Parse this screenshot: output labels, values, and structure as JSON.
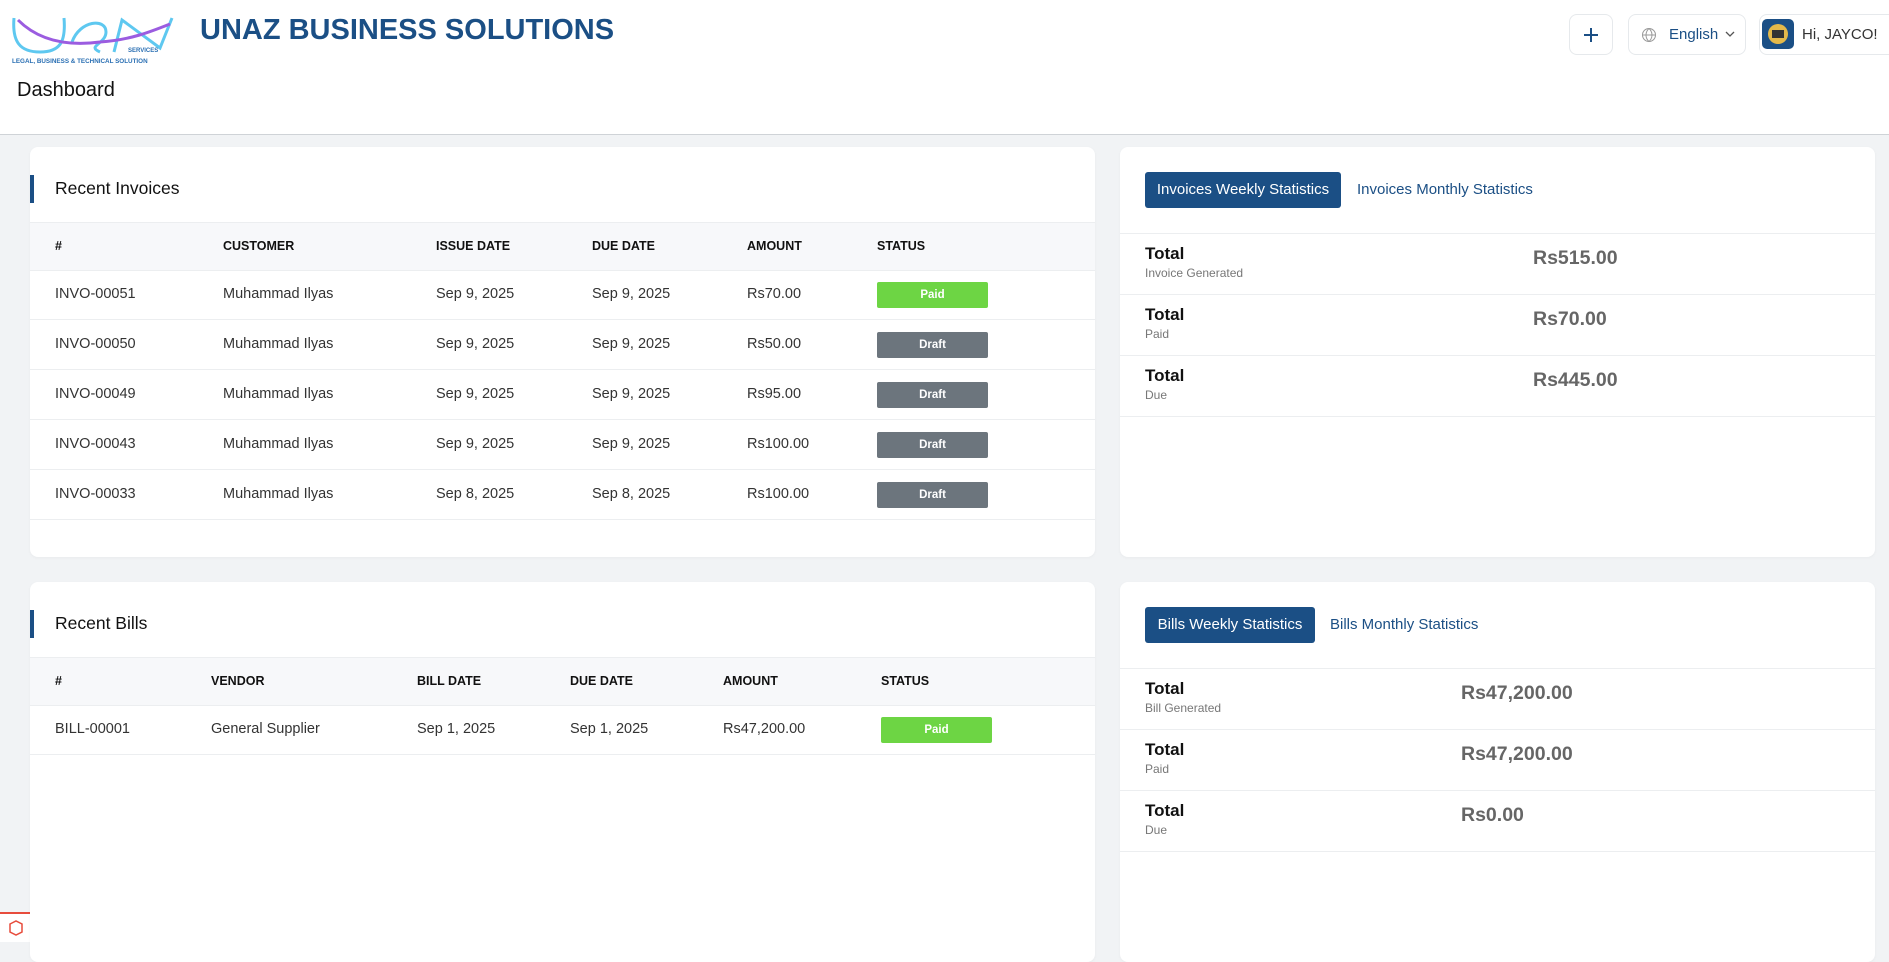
{
  "header": {
    "logo_word": "USN",
    "logo_sub": "SERVICES",
    "logo_tagline": "LEGAL, BUSINESS & TECHNICAL SOLUTION",
    "title": "UNAZ BUSINESS SOLUTIONS",
    "language": "English",
    "greeting": "Hi, JAYCO!"
  },
  "page_title": "Dashboard",
  "status_colors": {
    "Paid": "#6dd544",
    "Draft": "#6c757d"
  },
  "invoices": {
    "title": "Recent Invoices",
    "columns": [
      "#",
      "CUSTOMER",
      "ISSUE DATE",
      "DUE DATE",
      "AMOUNT",
      "STATUS"
    ],
    "rows": [
      [
        "INVO-00051",
        "Muhammad Ilyas",
        "Sep 9, 2025",
        "Sep 9, 2025",
        "Rs70.00",
        "Paid"
      ],
      [
        "INVO-00050",
        "Muhammad Ilyas",
        "Sep 9, 2025",
        "Sep 9, 2025",
        "Rs50.00",
        "Draft"
      ],
      [
        "INVO-00049",
        "Muhammad Ilyas",
        "Sep 9, 2025",
        "Sep 9, 2025",
        "Rs95.00",
        "Draft"
      ],
      [
        "INVO-00043",
        "Muhammad Ilyas",
        "Sep 9, 2025",
        "Sep 9, 2025",
        "Rs100.00",
        "Draft"
      ],
      [
        "INVO-00033",
        "Muhammad Ilyas",
        "Sep 8, 2025",
        "Sep 8, 2025",
        "Rs100.00",
        "Draft"
      ]
    ]
  },
  "invoice_stats": {
    "tabs": [
      "Invoices Weekly Statistics",
      "Invoices Monthly Statistics"
    ],
    "rows": [
      {
        "label": "Total",
        "sub": "Invoice Generated",
        "value": "Rs515.00"
      },
      {
        "label": "Total",
        "sub": "Paid",
        "value": "Rs70.00"
      },
      {
        "label": "Total",
        "sub": "Due",
        "value": "Rs445.00"
      }
    ]
  },
  "bills": {
    "title": "Recent Bills",
    "columns": [
      "#",
      "VENDOR",
      "BILL DATE",
      "DUE DATE",
      "AMOUNT",
      "STATUS"
    ],
    "rows": [
      [
        "BILL-00001",
        "General Supplier",
        "Sep 1, 2025",
        "Sep 1, 2025",
        "Rs47,200.00",
        "Paid"
      ]
    ]
  },
  "bill_stats": {
    "tabs": [
      "Bills Weekly Statistics",
      "Bills Monthly Statistics"
    ],
    "rows": [
      {
        "label": "Total",
        "sub": "Bill Generated",
        "value": "Rs47,200.00"
      },
      {
        "label": "Total",
        "sub": "Paid",
        "value": "Rs47,200.00"
      },
      {
        "label": "Total",
        "sub": "Due",
        "value": "Rs0.00"
      }
    ]
  }
}
